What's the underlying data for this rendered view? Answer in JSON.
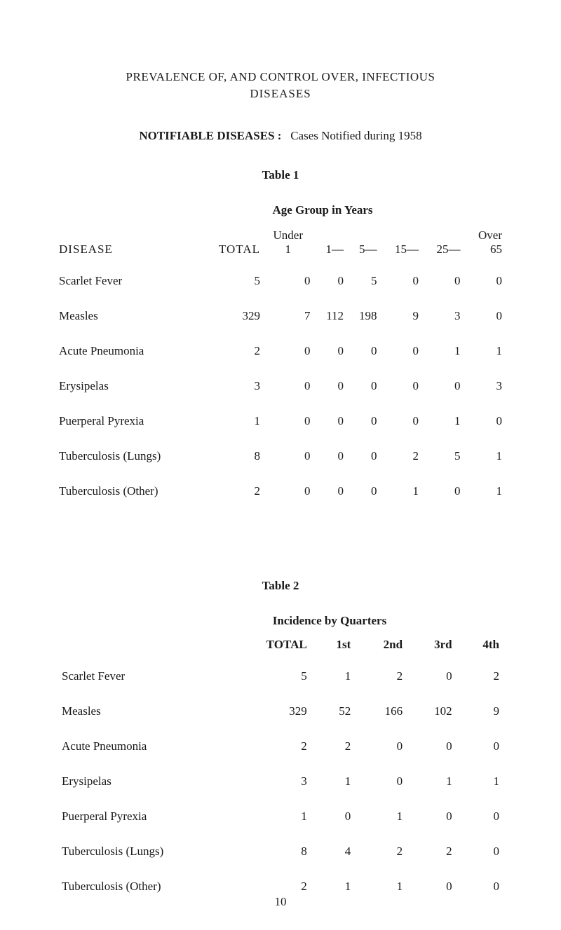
{
  "main_title_line1": "PREVALENCE OF, AND CONTROL OVER, INFECTIOUS",
  "main_title_line2": "DISEASES",
  "section_title_bold": "NOTIFIABLE DISEASES :",
  "section_title_rest": "Cases Notified during 1958",
  "table1": {
    "label": "Table 1",
    "super_header": "Age Group in Years",
    "sub_left": "Under",
    "sub_right": "Over",
    "col_disease": "DISEASE",
    "col_total": "TOTAL",
    "col_u1": "1",
    "col_1": "1—",
    "col_5": "5—",
    "col_15": "15—",
    "col_25": "25—",
    "col_65": "65",
    "rows": [
      {
        "name": "Scarlet Fever",
        "dots": "single",
        "total": "5",
        "u1": "0",
        "c1": "0",
        "c5": "5",
        "c15": "0",
        "c25": "0",
        "c65": "0"
      },
      {
        "name": "Measles",
        "dots": "double",
        "total": "329",
        "u1": "7",
        "c1": "112",
        "c5": "198",
        "c15": "9",
        "c25": "3",
        "c65": "0"
      },
      {
        "name": "Acute Pneumonia",
        "dots": "none",
        "total": "2",
        "u1": "0",
        "c1": "0",
        "c5": "0",
        "c15": "0",
        "c25": "1",
        "c65": "1"
      },
      {
        "name": "Erysipelas",
        "dots": "single",
        "total": "3",
        "u1": "0",
        "c1": "0",
        "c5": "0",
        "c15": "0",
        "c25": "0",
        "c65": "3"
      },
      {
        "name": "Puerperal Pyrexia",
        "dots": "none",
        "total": "1",
        "u1": "0",
        "c1": "0",
        "c5": "0",
        "c15": "0",
        "c25": "1",
        "c65": "0"
      },
      {
        "name": "Tuberculosis (Lungs)",
        "dots": "none",
        "total": "8",
        "u1": "0",
        "c1": "0",
        "c5": "0",
        "c15": "2",
        "c25": "5",
        "c65": "1"
      },
      {
        "name": "Tuberculosis (Other)",
        "dots": "none",
        "total": "2",
        "u1": "0",
        "c1": "0",
        "c5": "0",
        "c15": "1",
        "c25": "0",
        "c65": "1"
      }
    ]
  },
  "table2": {
    "label": "Table 2",
    "super_header": "Incidence by Quarters",
    "col_total": "TOTAL",
    "col_1st": "1st",
    "col_2nd": "2nd",
    "col_3rd": "3rd",
    "col_4th": "4th",
    "rows": [
      {
        "name": "Scarlet Fever",
        "total": "5",
        "q1": "1",
        "q2": "2",
        "q3": "0",
        "q4": "2"
      },
      {
        "name": "Measles",
        "total": "329",
        "q1": "52",
        "q2": "166",
        "q3": "102",
        "q4": "9"
      },
      {
        "name": "Acute Pneumonia",
        "total": "2",
        "q1": "2",
        "q2": "0",
        "q3": "0",
        "q4": "0"
      },
      {
        "name": "Erysipelas",
        "total": "3",
        "q1": "1",
        "q2": "0",
        "q3": "1",
        "q4": "1"
      },
      {
        "name": "Puerperal Pyrexia",
        "total": "1",
        "q1": "0",
        "q2": "1",
        "q3": "0",
        "q4": "0"
      },
      {
        "name": "Tuberculosis (Lungs)",
        "total": "8",
        "q1": "4",
        "q2": "2",
        "q3": "2",
        "q4": "0"
      },
      {
        "name": "Tuberculosis (Other)",
        "total": "2",
        "q1": "1",
        "q2": "1",
        "q3": "0",
        "q4": "0"
      }
    ]
  },
  "page_number": "10"
}
